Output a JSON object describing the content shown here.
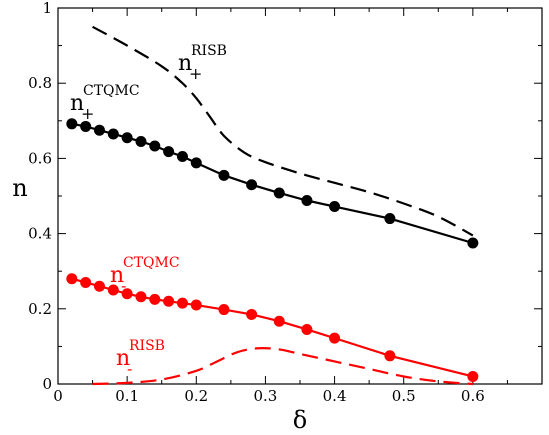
{
  "chart_data": {
    "type": "line",
    "xlabel": "δ",
    "ylabel": "n",
    "xlim": [
      0,
      0.7
    ],
    "ylim": [
      0,
      1
    ],
    "x_ticks": [
      0,
      0.1,
      0.2,
      0.3,
      0.4,
      0.5,
      0.6
    ],
    "x_tick_labels": [
      "0",
      "0.1",
      "0.2",
      "0.3",
      "0.4",
      "0.5",
      "0.6"
    ],
    "y_ticks": [
      0,
      0.2,
      0.4,
      0.6,
      0.8,
      1
    ],
    "y_tick_labels": [
      "0",
      "0.2",
      "0.4",
      "0.6",
      "0.8",
      "1"
    ],
    "grid": false,
    "series": [
      {
        "name": "n+ CTQMC",
        "label_main": "n",
        "label_sub": "+",
        "label_sup": "CTQMC",
        "color": "#000000",
        "style": "solid-markers",
        "x": [
          0.02,
          0.04,
          0.06,
          0.08,
          0.1,
          0.12,
          0.14,
          0.16,
          0.18,
          0.2,
          0.24,
          0.28,
          0.32,
          0.36,
          0.4,
          0.48,
          0.6
        ],
        "y": [
          0.692,
          0.685,
          0.675,
          0.665,
          0.655,
          0.645,
          0.633,
          0.618,
          0.605,
          0.588,
          0.555,
          0.53,
          0.508,
          0.488,
          0.472,
          0.44,
          0.375
        ]
      },
      {
        "name": "n+ RISB",
        "label_main": "n",
        "label_sub": "+",
        "label_sup": "RISB",
        "color": "#000000",
        "style": "dashed",
        "x": [
          0.05,
          0.1,
          0.15,
          0.18,
          0.2,
          0.22,
          0.24,
          0.27,
          0.3,
          0.35,
          0.4,
          0.45,
          0.5,
          0.55,
          0.6
        ],
        "y": [
          0.95,
          0.9,
          0.845,
          0.8,
          0.76,
          0.71,
          0.66,
          0.615,
          0.59,
          0.56,
          0.535,
          0.51,
          0.48,
          0.445,
          0.395
        ]
      },
      {
        "name": "n- CTQMC",
        "label_main": "n",
        "label_sub": "-",
        "label_sup": "CTQMC",
        "color": "#ff0000",
        "style": "solid-markers",
        "x": [
          0.02,
          0.04,
          0.06,
          0.08,
          0.1,
          0.12,
          0.14,
          0.16,
          0.18,
          0.2,
          0.24,
          0.28,
          0.32,
          0.36,
          0.4,
          0.48,
          0.6
        ],
        "y": [
          0.28,
          0.27,
          0.26,
          0.25,
          0.24,
          0.232,
          0.225,
          0.22,
          0.215,
          0.21,
          0.198,
          0.185,
          0.167,
          0.145,
          0.122,
          0.075,
          0.02
        ]
      },
      {
        "name": "n- RISB",
        "label_main": "n",
        "label_sub": "-",
        "label_sup": "RISB",
        "color": "#ff0000",
        "style": "dashed",
        "x": [
          0.05,
          0.1,
          0.15,
          0.2,
          0.23,
          0.26,
          0.29,
          0.32,
          0.35,
          0.4,
          0.45,
          0.5,
          0.55,
          0.6
        ],
        "y": [
          0.0,
          0.003,
          0.012,
          0.035,
          0.06,
          0.085,
          0.095,
          0.092,
          0.08,
          0.06,
          0.04,
          0.02,
          0.007,
          0.0
        ]
      }
    ]
  }
}
